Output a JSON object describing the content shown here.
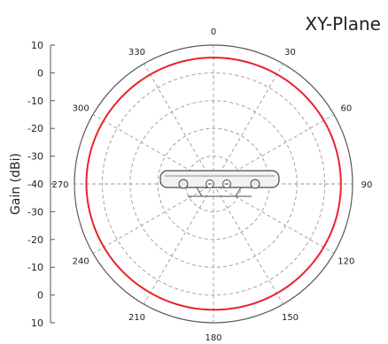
{
  "chart_data": {
    "type": "polar",
    "title": "XY-Plane",
    "ylabel": "Gain (dBi)",
    "radial_range": [
      -40,
      10
    ],
    "radial_ticks": [
      10,
      0,
      -10,
      -20,
      -30,
      -40
    ],
    "radial_tick_labels_upper": [
      "10",
      "0",
      "-10",
      "-20",
      "-30",
      "-40"
    ],
    "radial_tick_labels_lower": [
      "-30",
      "-20",
      "-10",
      "0",
      "10"
    ],
    "angle_ticks": [
      0,
      30,
      60,
      90,
      120,
      150,
      180,
      210,
      240,
      270,
      300,
      330
    ],
    "angle_tick_labels": [
      "0",
      "30",
      "60",
      "90",
      "120",
      "150",
      "180",
      "210",
      "240",
      "270",
      "300",
      "330"
    ],
    "grid": true,
    "series": [
      {
        "color": "#e8232a",
        "angles": [
          0,
          15,
          30,
          45,
          60,
          75,
          90,
          105,
          120,
          135,
          150,
          165,
          180,
          195,
          210,
          225,
          240,
          255,
          270,
          285,
          300,
          315,
          330,
          345
        ],
        "values": [
          5.5,
          5.5,
          5.6,
          5.7,
          5.8,
          5.8,
          5.8,
          5.8,
          5.7,
          5.6,
          5.5,
          5.4,
          5.3,
          5.3,
          5.3,
          5.4,
          5.5,
          5.6,
          5.7,
          5.7,
          5.6,
          5.5,
          5.5,
          5.5
        ]
      }
    ]
  },
  "colors": {
    "grid": "#9a9a9a",
    "outer_ring": "#555555",
    "curve": "#e8232a",
    "text": "#222222"
  },
  "device": {
    "icon": "access-point-device-icon"
  }
}
